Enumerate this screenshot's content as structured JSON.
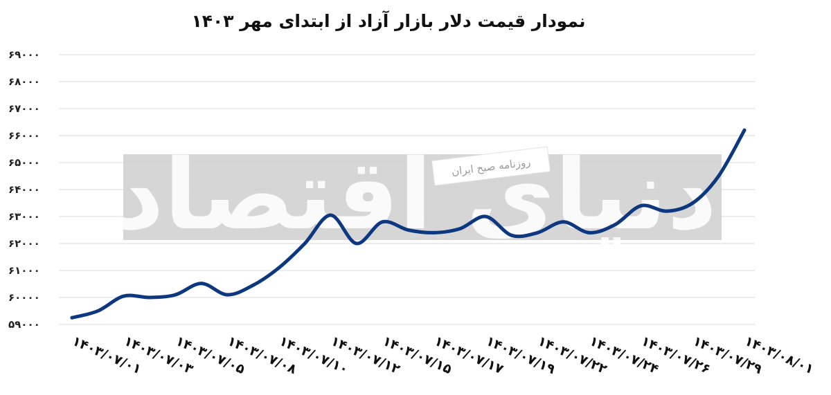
{
  "chart_data": {
    "type": "line",
    "title": "نمودار قیمت دلار بازار آزاد از ابتدای مهر ۱۴۰۳",
    "xlabel": "",
    "ylabel": "",
    "x_tick_labels": [
      "۱۴۰۳/۰۷/۰۱",
      "۱۴۰۳/۰۷/۰۳",
      "۱۴۰۳/۰۷/۰۵",
      "۱۴۰۳/۰۷/۰۸",
      "۱۴۰۳/۰۷/۱۰",
      "۱۴۰۳/۰۷/۱۲",
      "۱۴۰۳/۰۷/۱۵",
      "۱۴۰۳/۰۷/۱۷",
      "۱۴۰۳/۰۷/۱۹",
      "۱۴۰۳/۰۷/۲۲",
      "۱۴۰۳/۰۷/۲۴",
      "۱۴۰۳/۰۷/۲۶",
      "۱۴۰۳/۰۷/۲۹",
      "۱۴۰۳/۰۸/۰۱"
    ],
    "y_ticks": [
      59000,
      60000,
      61000,
      62000,
      63000,
      64000,
      65000,
      66000,
      67000,
      68000,
      69000
    ],
    "y_tick_labels": [
      "۵۹۰۰۰",
      "۶۰۰۰۰",
      "۶۱۰۰۰",
      "۶۲۰۰۰",
      "۶۳۰۰۰",
      "۶۴۰۰۰",
      "۶۵۰۰۰",
      "۶۶۰۰۰",
      "۶۷۰۰۰",
      "۶۸۰۰۰",
      "۶۹۰۰۰"
    ],
    "ylim": [
      59000,
      69000
    ],
    "grid": true,
    "legend": "none",
    "line_color": "#0d3880",
    "series": [
      {
        "x": [
          0,
          0.5,
          1,
          1.5,
          2,
          2.5,
          3,
          3.5,
          4,
          4.5,
          5,
          5.5,
          6,
          6.5,
          7,
          7.5,
          8,
          8.5,
          9,
          9.5,
          10,
          10.5,
          11,
          11.5,
          12,
          12.5,
          13
        ],
        "values": [
          59250,
          59500,
          60050,
          60000,
          60100,
          60520,
          60100,
          60450,
          61100,
          62000,
          63050,
          62000,
          62800,
          62500,
          62400,
          62550,
          63000,
          62300,
          62400,
          62800,
          62400,
          62700,
          63400,
          63200,
          63500,
          64500,
          66200
        ]
      }
    ]
  },
  "watermark": {
    "text": "دنیای اقتصاد",
    "badge": "روزنامه صبح ایران"
  }
}
